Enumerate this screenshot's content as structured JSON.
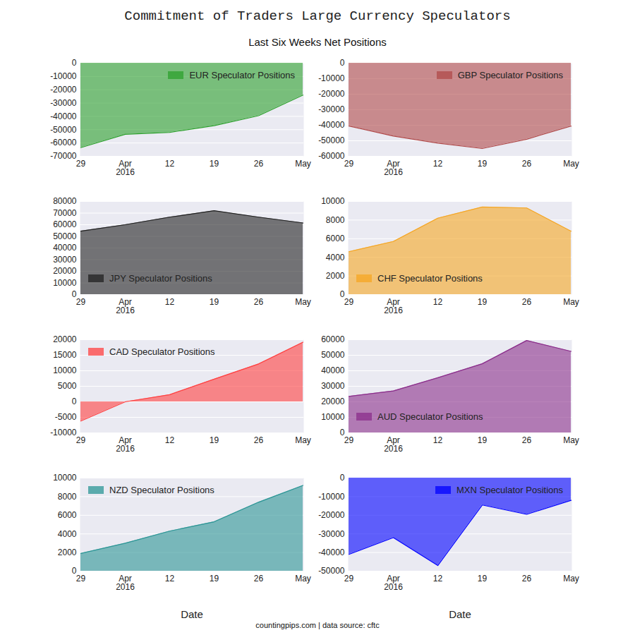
{
  "title": "Commitment of Traders Large Currency Speculators",
  "subtitle": "Last Six Weeks Net Positions",
  "caption": "countingpips.com | data source: cftc",
  "chart_data": [
    {
      "type": "area",
      "categories": [
        "29",
        "Apr\n2016",
        "12",
        "19",
        "26",
        "May"
      ],
      "series": [
        {
          "name": "EUR Speculator Positions",
          "color": "#2ca02c",
          "values": [
            -63500,
            -53500,
            -52000,
            -47000,
            -39500,
            -24000
          ]
        }
      ],
      "ylim": [
        -70000,
        0
      ],
      "yticks": [
        -70000,
        -60000,
        -50000,
        -40000,
        -30000,
        -20000,
        -10000,
        0
      ],
      "grid": true,
      "legend": "upper right"
    },
    {
      "type": "area",
      "categories": [
        "29",
        "Apr\n2016",
        "12",
        "19",
        "26",
        "May"
      ],
      "series": [
        {
          "name": "GBP Speculator Positions",
          "color": "#b04a4a",
          "values": [
            -40500,
            -47000,
            -51500,
            -55000,
            -49000,
            -40500
          ]
        }
      ],
      "ylim": [
        -60000,
        0
      ],
      "yticks": [
        -60000,
        -50000,
        -40000,
        -30000,
        -20000,
        -10000,
        0
      ],
      "grid": true,
      "legend": "upper right"
    },
    {
      "type": "area",
      "categories": [
        "29",
        "Apr\n2016",
        "12",
        "19",
        "26",
        "May"
      ],
      "series": [
        {
          "name": "JPY Speculator Positions",
          "color": "#222222",
          "values": [
            54500,
            60000,
            66500,
            72000,
            66500,
            61500
          ]
        }
      ],
      "ylim": [
        0,
        80000
      ],
      "yticks": [
        0,
        10000,
        20000,
        30000,
        40000,
        50000,
        60000,
        70000,
        80000
      ],
      "grid": true,
      "legend": "lower left"
    },
    {
      "type": "area",
      "categories": [
        "29",
        "Apr\n2016",
        "12",
        "19",
        "26",
        "May"
      ],
      "series": [
        {
          "name": "CHF Speculator Positions",
          "color": "#f5a623",
          "values": [
            4600,
            5700,
            8200,
            9400,
            9300,
            6800
          ]
        }
      ],
      "ylim": [
        0,
        10000
      ],
      "yticks": [
        0,
        2000,
        4000,
        6000,
        8000,
        10000
      ],
      "grid": true,
      "legend": "lower left"
    },
    {
      "type": "area",
      "categories": [
        "29",
        "Apr\n2016",
        "12",
        "19",
        "26",
        "May"
      ],
      "series": [
        {
          "name": "CAD Speculator Positions",
          "color": "#ff4040",
          "values": [
            -6200,
            0,
            2300,
            7300,
            12200,
            19200
          ]
        }
      ],
      "ylim": [
        -10000,
        20000
      ],
      "yticks": [
        -10000,
        -5000,
        0,
        5000,
        10000,
        15000,
        20000
      ],
      "grid": true,
      "legend": "upper left"
    },
    {
      "type": "area",
      "categories": [
        "29",
        "Apr\n2016",
        "12",
        "19",
        "26",
        "May"
      ],
      "series": [
        {
          "name": "AUD Speculator Positions",
          "color": "#8b2e8b",
          "values": [
            23500,
            27000,
            35500,
            44500,
            59500,
            52500
          ]
        }
      ],
      "ylim": [
        0,
        60000
      ],
      "yticks": [
        0,
        10000,
        20000,
        30000,
        40000,
        50000,
        60000
      ],
      "grid": true,
      "legend": "lower left"
    },
    {
      "type": "area",
      "categories": [
        "29",
        "Apr\n2016",
        "12",
        "19",
        "26",
        "May"
      ],
      "series": [
        {
          "name": "NZD Speculator Positions",
          "color": "#2b9595",
          "values": [
            1900,
            3000,
            4300,
            5300,
            7400,
            9200
          ]
        }
      ],
      "ylim": [
        0,
        10000
      ],
      "yticks": [
        0,
        2000,
        4000,
        6000,
        8000,
        10000
      ],
      "grid": true,
      "legend": "upper left",
      "x_label": "Date"
    },
    {
      "type": "area",
      "categories": [
        "29",
        "Apr\n2016",
        "12",
        "19",
        "26",
        "May"
      ],
      "series": [
        {
          "name": "MXN Speculator Positions",
          "color": "#0000ff",
          "values": [
            -41000,
            -32000,
            -47000,
            -14500,
            -19500,
            -12000
          ]
        }
      ],
      "ylim": [
        -50000,
        0
      ],
      "yticks": [
        -50000,
        -40000,
        -30000,
        -20000,
        -10000,
        0
      ],
      "grid": true,
      "legend": "upper right",
      "x_label": "Date"
    }
  ]
}
